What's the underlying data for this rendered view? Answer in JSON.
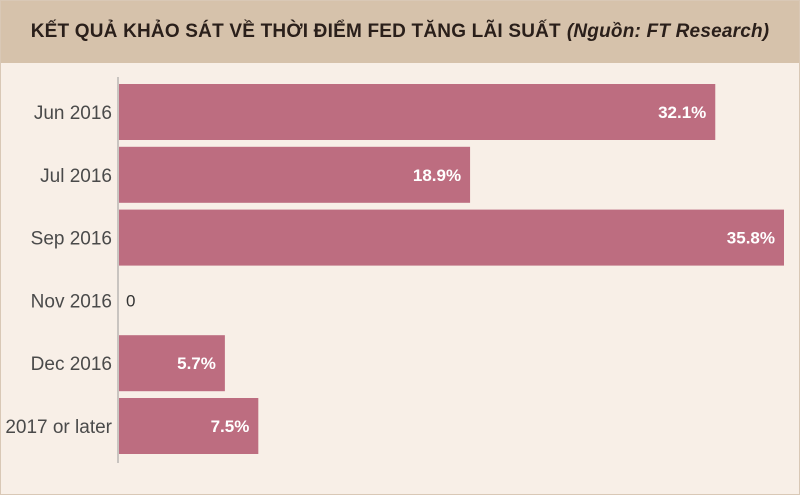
{
  "header": {
    "title": "KẾT QUẢ KHẢO SÁT VỀ THỜI ĐIỂM FED TĂNG LÃI SUẤT",
    "source": "(Nguồn: FT Research)"
  },
  "colors": {
    "bar": "#bd6d80",
    "header_bg": "#d6c2ab",
    "panel_bg": "#f8efe7"
  },
  "chart_data": {
    "type": "bar",
    "orientation": "horizontal",
    "categories": [
      "Jun 2016",
      "Jul 2016",
      "Sep 2016",
      "Nov 2016",
      "Dec 2016",
      "2017 or later"
    ],
    "values": [
      32.1,
      18.9,
      35.8,
      0,
      5.7,
      7.5
    ],
    "value_labels": [
      "32.1%",
      "18.9%",
      "35.8%",
      "0",
      "5.7%",
      "7.5%"
    ],
    "xlim": [
      0,
      35.8
    ],
    "grid": false
  }
}
